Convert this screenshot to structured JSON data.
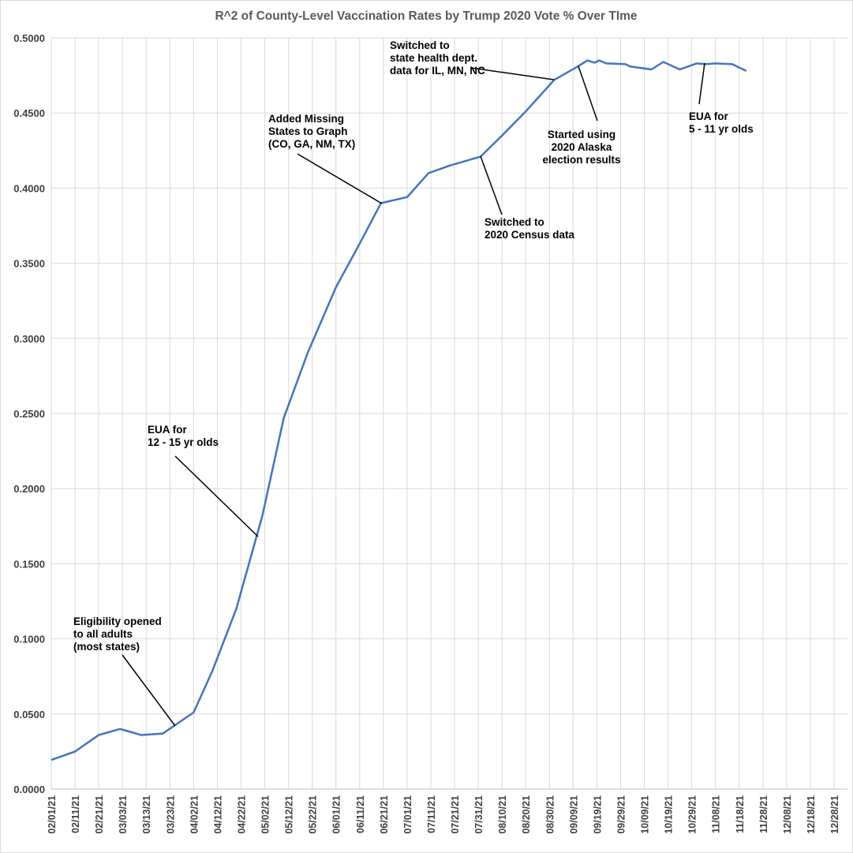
{
  "chart_data": {
    "type": "line",
    "title": "R^2 of County-Level Vaccination Rates by Trump 2020 Vote % Over TIme",
    "xlabel": "",
    "ylabel": "",
    "ylim": [
      0,
      0.5
    ],
    "xlim": [
      "02/01/21",
      "12/28/21"
    ],
    "grid": true,
    "line_color": "#4472C4",
    "y_ticks": [
      "0.0000",
      "0.0500",
      "0.1000",
      "0.1500",
      "0.2000",
      "0.2500",
      "0.3000",
      "0.3500",
      "0.4000",
      "0.4500",
      "0.5000"
    ],
    "x_ticks": [
      "02/01/21",
      "02/11/21",
      "02/21/21",
      "03/03/21",
      "03/13/21",
      "03/23/21",
      "04/02/21",
      "04/12/21",
      "04/22/21",
      "05/02/21",
      "05/12/21",
      "05/22/21",
      "06/01/21",
      "06/11/21",
      "06/21/21",
      "07/01/21",
      "07/11/21",
      "07/21/21",
      "07/31/21",
      "08/10/21",
      "08/20/21",
      "08/30/21",
      "09/09/21",
      "09/19/21",
      "09/29/21",
      "10/09/21",
      "10/19/21",
      "10/29/21",
      "11/08/21",
      "11/18/21",
      "11/28/21",
      "12/08/21",
      "12/18/21",
      "12/28/21"
    ],
    "series": [
      {
        "x": [
          "2021-02-01",
          "2021-02-11",
          "2021-02-21",
          "2021-03-02",
          "2021-03-11",
          "2021-03-20",
          "2021-04-02",
          "2021-04-10",
          "2021-04-20",
          "2021-05-01",
          "2021-05-10",
          "2021-05-20",
          "2021-06-01",
          "2021-06-11",
          "2021-06-20",
          "2021-07-01",
          "2021-07-10",
          "2021-07-19",
          "2021-08-01",
          "2021-08-10",
          "2021-08-20",
          "2021-09-01",
          "2021-09-11",
          "2021-09-15",
          "2021-09-18",
          "2021-09-20",
          "2021-09-23",
          "2021-10-01",
          "2021-10-03",
          "2021-10-12",
          "2021-10-17",
          "2021-10-24",
          "2021-10-31",
          "2021-11-04",
          "2021-11-08",
          "2021-11-15",
          "2021-11-21"
        ],
        "values": [
          0.0194,
          0.025,
          0.036,
          0.04,
          0.036,
          0.037,
          0.051,
          0.079,
          0.12,
          0.182,
          0.247,
          0.29,
          0.334,
          0.363,
          0.39,
          0.394,
          0.41,
          0.415,
          0.421,
          0.435,
          0.451,
          0.472,
          0.481,
          0.485,
          0.4835,
          0.485,
          0.483,
          0.4825,
          0.481,
          0.479,
          0.484,
          0.479,
          0.483,
          0.4825,
          0.483,
          0.4825,
          0.478
        ]
      }
    ],
    "annotations": [
      {
        "lines": [
          "Eligibility opened",
          "to all adults",
          "(most states)"
        ]
      },
      {
        "lines": [
          "EUA for",
          "12 - 15 yr olds"
        ]
      },
      {
        "lines": [
          "Added Missing",
          "States to Graph",
          "(CO, GA, NM, TX)"
        ]
      },
      {
        "lines": [
          "Switched to",
          "2020 Census data"
        ]
      },
      {
        "lines": [
          "Switched to",
          "state health dept.",
          "data for IL, MN, NC"
        ]
      },
      {
        "lines": [
          "Started using",
          "2020 Alaska",
          "election results"
        ]
      },
      {
        "lines": [
          "EUA for",
          "5 - 11 yr olds"
        ]
      }
    ]
  }
}
